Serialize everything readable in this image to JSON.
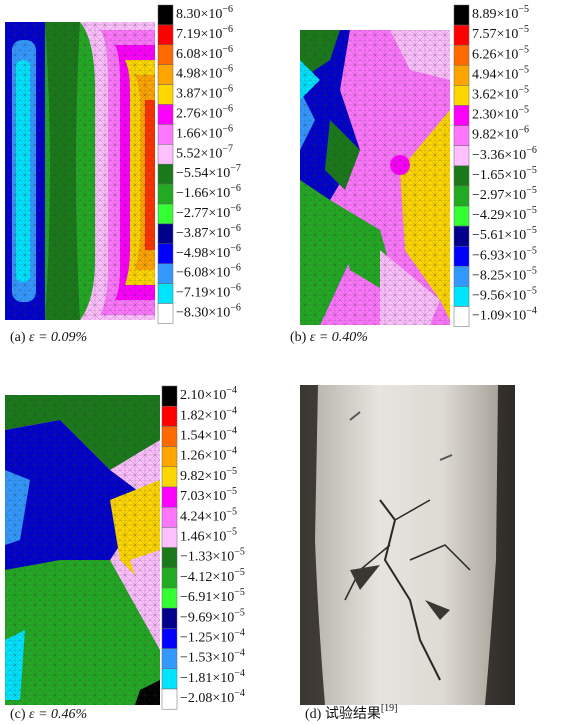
{
  "panels": [
    {
      "caption": {
        "label": "(a)",
        "text": "ε = 0.09%"
      },
      "colorbar": [
        {
          "base": "8.30×10",
          "exp": "−6"
        },
        {
          "base": "7.19×10",
          "exp": "−6"
        },
        {
          "base": "6.08×10",
          "exp": "−6"
        },
        {
          "base": "4.98×10",
          "exp": "−6"
        },
        {
          "base": "3.87×10",
          "exp": "−6"
        },
        {
          "base": "2.76×10",
          "exp": "−6"
        },
        {
          "base": "1.66×10",
          "exp": "−6"
        },
        {
          "base": "5.52×10",
          "exp": "−7"
        },
        {
          "base": "−5.54×10",
          "exp": "−7"
        },
        {
          "base": "−1.66×10",
          "exp": "−6"
        },
        {
          "base": "−2.77×10",
          "exp": "−6"
        },
        {
          "base": "−3.87×10",
          "exp": "−6"
        },
        {
          "base": "−4.98×10",
          "exp": "−6"
        },
        {
          "base": "−6.08×10",
          "exp": "−6"
        },
        {
          "base": "−7.19×10",
          "exp": "−6"
        },
        {
          "base": "−8.30×10",
          "exp": "−6"
        }
      ]
    },
    {
      "caption": {
        "label": "(b)",
        "text": "ε = 0.40%"
      },
      "colorbar": [
        {
          "base": "8.89×10",
          "exp": "−5"
        },
        {
          "base": "7.57×10",
          "exp": "−5"
        },
        {
          "base": "6.26×10",
          "exp": "−5"
        },
        {
          "base": "4.94×10",
          "exp": "−5"
        },
        {
          "base": "3.62×10",
          "exp": "−5"
        },
        {
          "base": "2.30×10",
          "exp": "−5"
        },
        {
          "base": "9.82×10",
          "exp": "−6"
        },
        {
          "base": "−3.36×10",
          "exp": "−6"
        },
        {
          "base": "−1.65×10",
          "exp": "−5"
        },
        {
          "base": "−2.97×10",
          "exp": "−5"
        },
        {
          "base": "−4.29×10",
          "exp": "−5"
        },
        {
          "base": "−5.61×10",
          "exp": "−5"
        },
        {
          "base": "−6.93×10",
          "exp": "−5"
        },
        {
          "base": "−8.25×10",
          "exp": "−5"
        },
        {
          "base": "−9.56×10",
          "exp": "−5"
        },
        {
          "base": "−1.09×10",
          "exp": "−4"
        }
      ]
    },
    {
      "caption": {
        "label": "(c)",
        "text": "ε = 0.46%"
      },
      "colorbar": [
        {
          "base": "2.10×10",
          "exp": "−4"
        },
        {
          "base": "1.82×10",
          "exp": "−4"
        },
        {
          "base": "1.54×10",
          "exp": "−4"
        },
        {
          "base": "1.26×10",
          "exp": "−4"
        },
        {
          "base": "9.82×10",
          "exp": "−5"
        },
        {
          "base": "7.03×10",
          "exp": "−5"
        },
        {
          "base": "4.24×10",
          "exp": "−5"
        },
        {
          "base": "1.46×10",
          "exp": "−5"
        },
        {
          "base": "−1.33×10",
          "exp": "−5"
        },
        {
          "base": "−4.12×10",
          "exp": "−5"
        },
        {
          "base": "−6.91×10",
          "exp": "−5"
        },
        {
          "base": "−9.69×10",
          "exp": "−5"
        },
        {
          "base": "−1.25×10",
          "exp": "−4"
        },
        {
          "base": "−1.53×10",
          "exp": "−4"
        },
        {
          "base": "−1.81×10",
          "exp": "−4"
        },
        {
          "base": "−2.08×10",
          "exp": "−4"
        }
      ]
    },
    {
      "caption": {
        "label": "(d)",
        "text": "试验结果",
        "sup": "[19]"
      }
    }
  ]
}
